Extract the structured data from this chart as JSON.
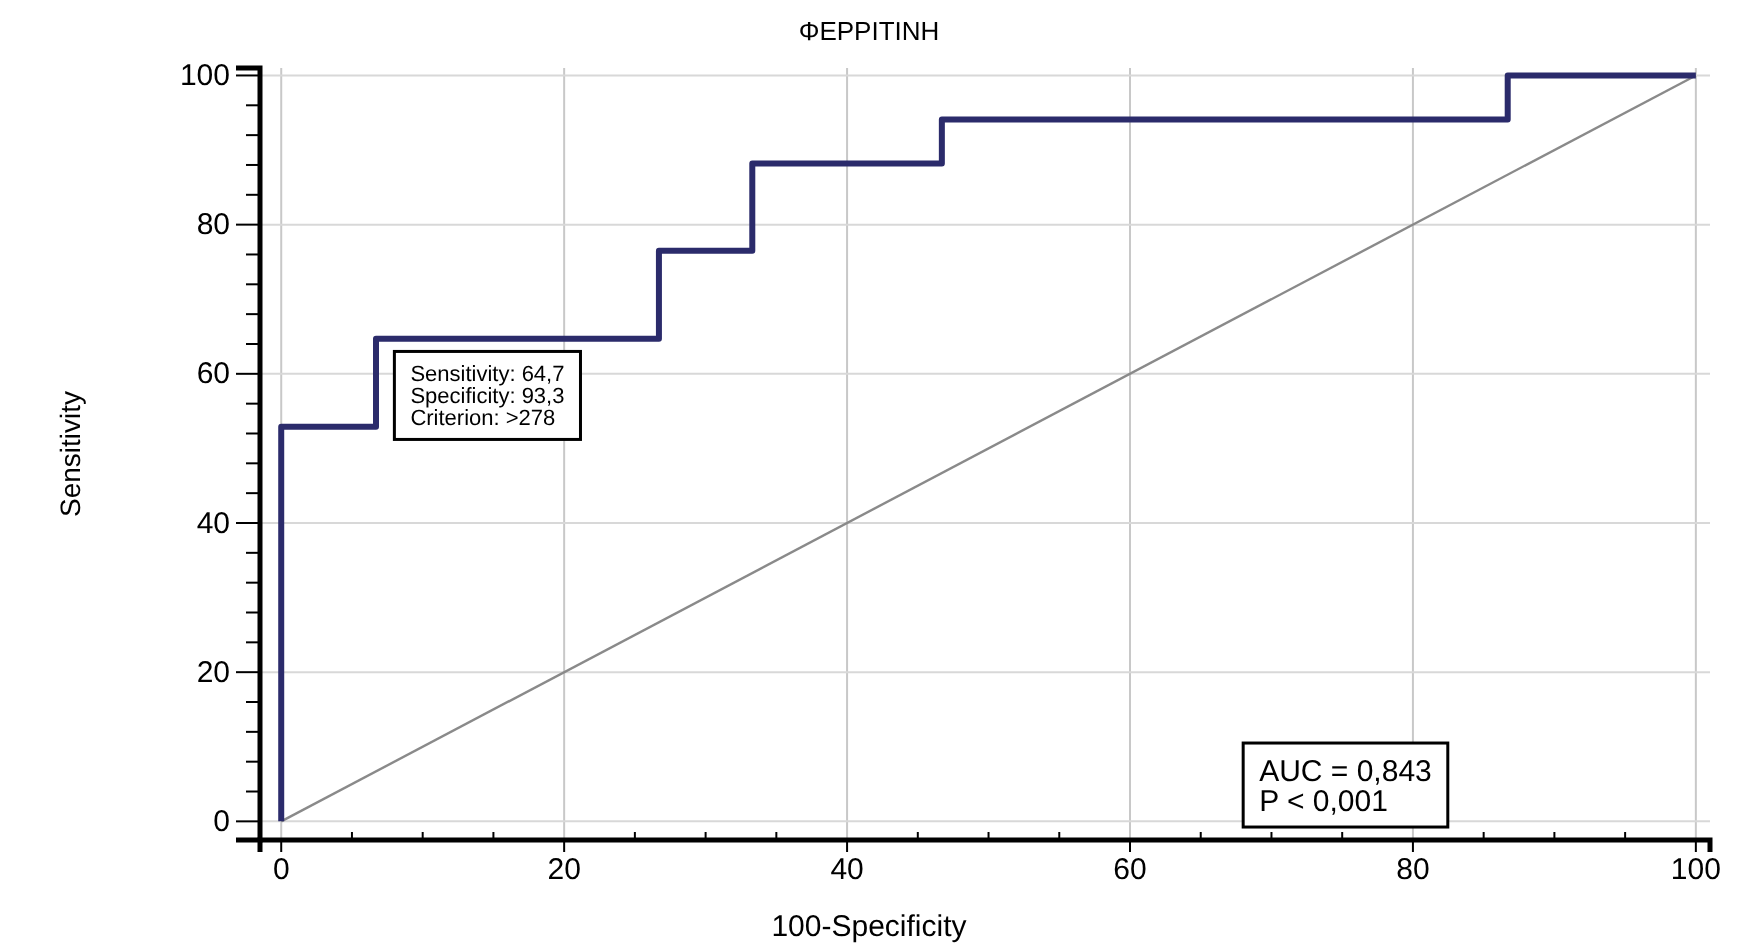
{
  "chart_data": {
    "type": "line",
    "title": "ΦΕΡΡΙΤΙΝΗ",
    "xlabel": "100-Specificity",
    "ylabel": "Sensitivity",
    "xlim": [
      -1.5,
      101
    ],
    "ylim": [
      -2.5,
      101
    ],
    "xticks": [
      0,
      20,
      40,
      60,
      80,
      100
    ],
    "yticks": [
      0,
      20,
      40,
      60,
      80,
      100
    ],
    "grid": true,
    "marker": "none",
    "series": [
      {
        "color": "#2b2b6b",
        "x": [
          0,
          0,
          6.7,
          6.7,
          26.7,
          26.7,
          33.3,
          33.3,
          46.7,
          46.7,
          86.7,
          86.7,
          100
        ],
        "values": [
          0,
          52.9,
          52.9,
          64.7,
          64.7,
          76.5,
          76.5,
          88.2,
          88.2,
          94.1,
          94.1,
          100,
          100
        ]
      },
      {
        "color": "#8a8a8a",
        "x": [
          0,
          100
        ],
        "values": [
          0,
          100
        ]
      }
    ],
    "annotations": [
      "Sensitivity: 64,7\nSpecificity: 93,3\nCriterion: >278",
      "AUC = 0,843\nP < 0,001"
    ]
  }
}
